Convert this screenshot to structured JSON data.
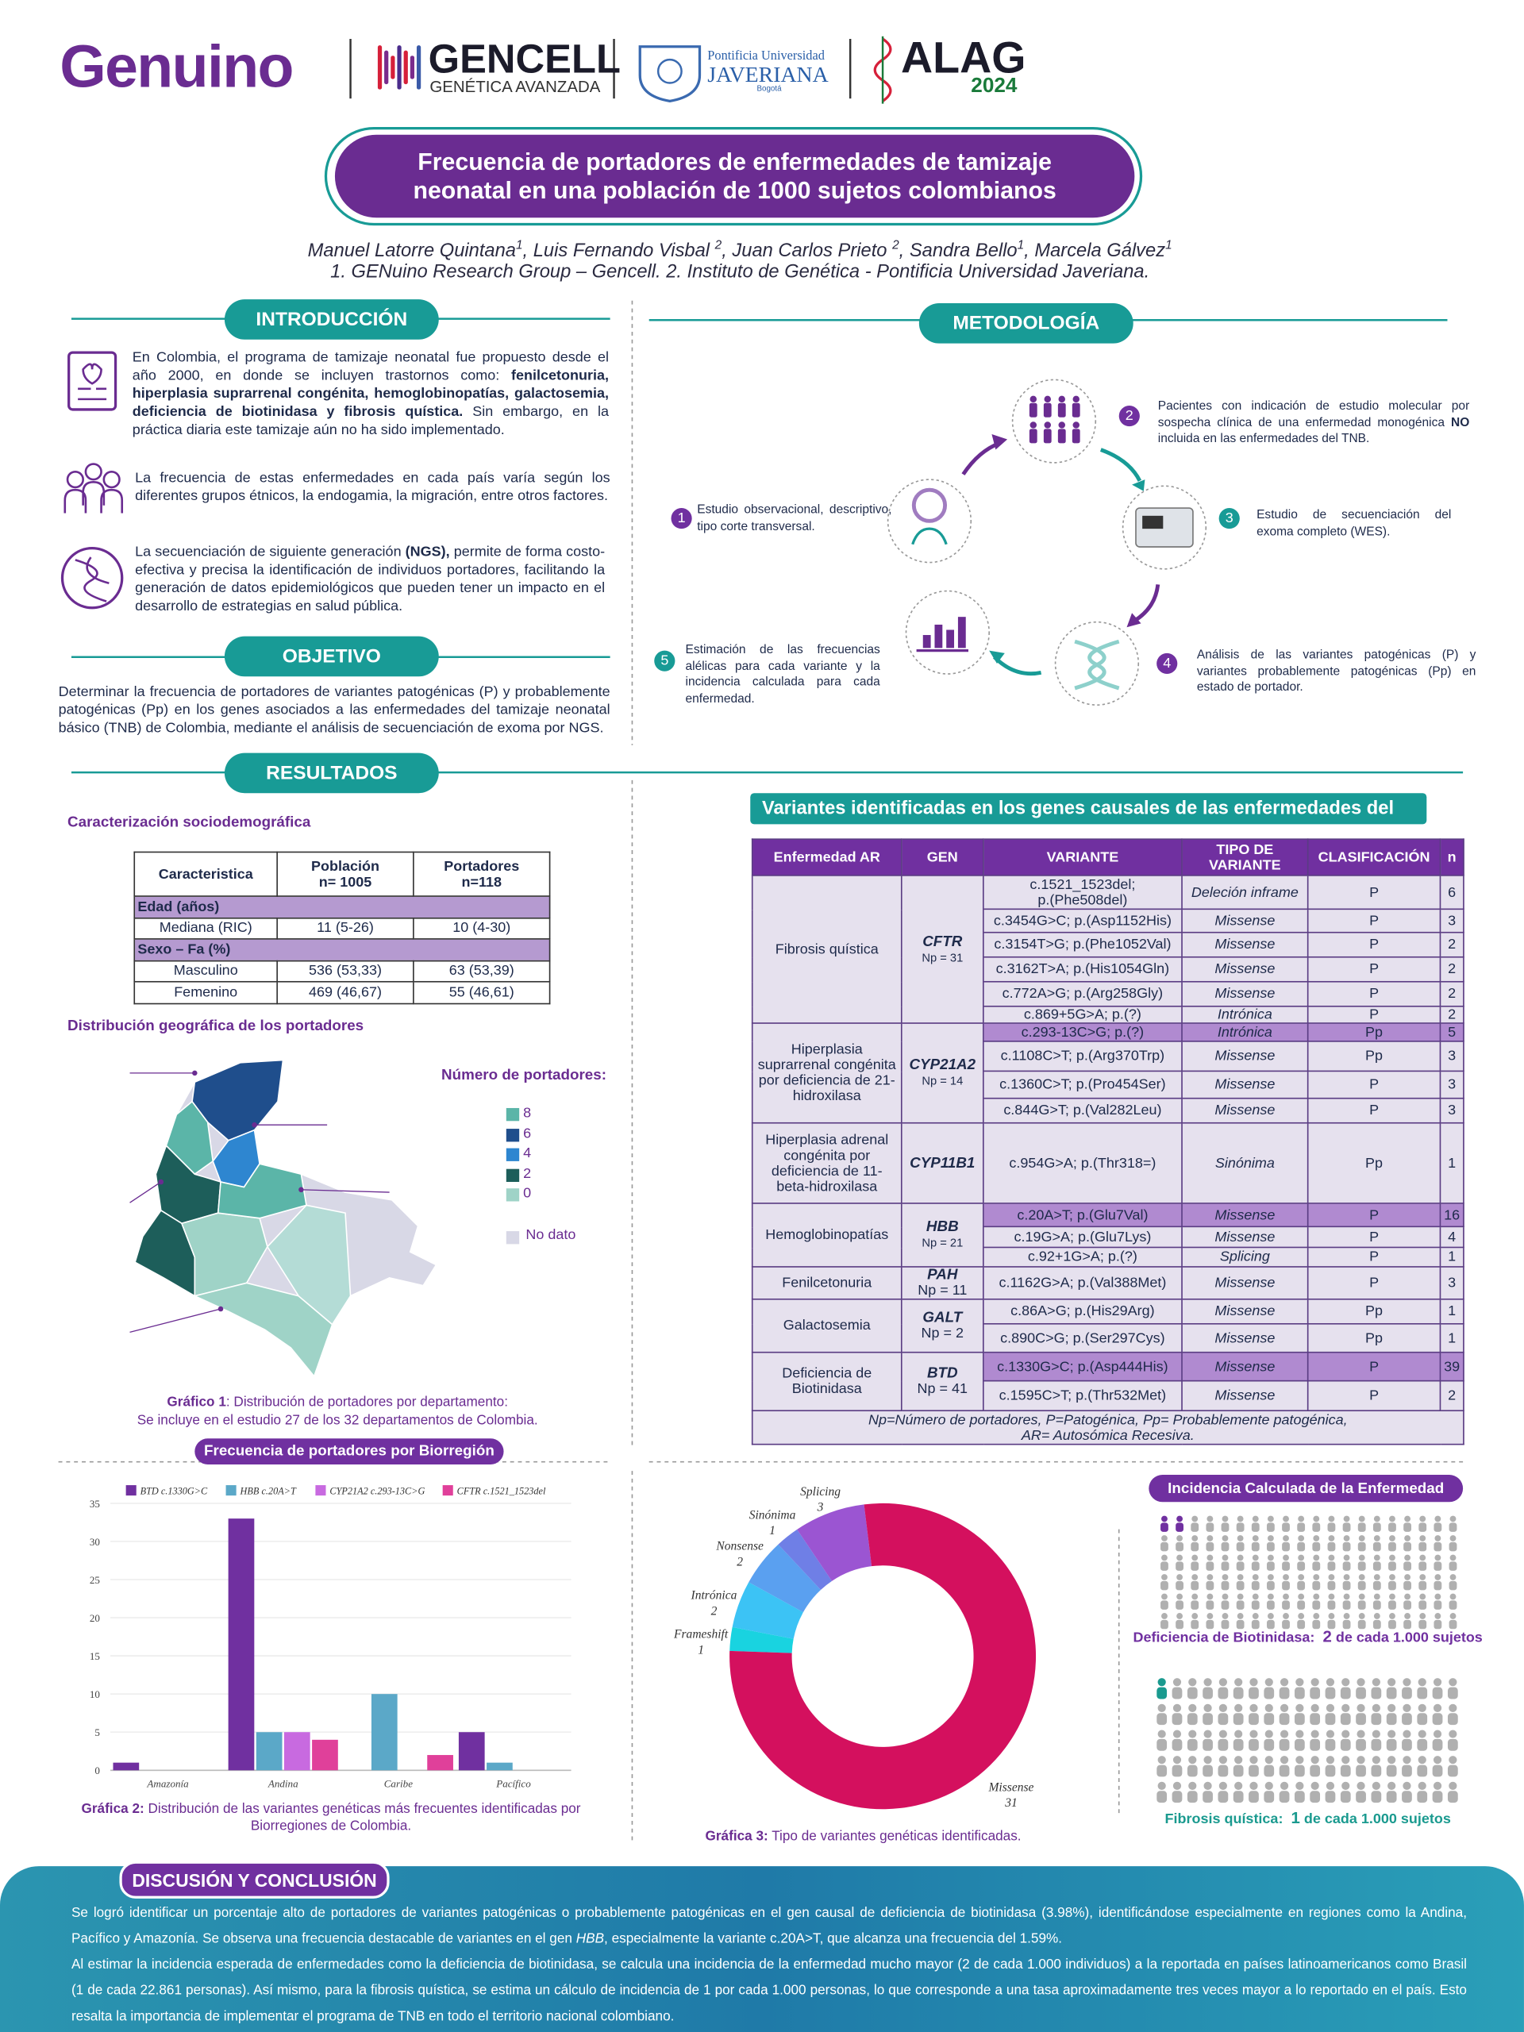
{
  "header": {
    "logos": {
      "genuino": "Genuino",
      "gencell": "GENCELL",
      "gencell_sub": "GENÉTICA AVANZADA",
      "javeriana_top": "Pontificia Universidad",
      "javeriana": "JAVERIANA",
      "javeriana_city": "Bogotá",
      "alag": "ALAG",
      "alag_year": "2024"
    },
    "title": [
      "Frecuencia de portadores de enfermedades de tamizaje",
      "neonatal en una población de 1000 sujetos colombianos"
    ],
    "authors": [
      {
        "text": "Manuel Latorre Quintana"
      },
      {
        "text": "1",
        "sup": true
      },
      {
        "text": ", Luis Fernando Visbal "
      },
      {
        "text": "2",
        "sup": true
      },
      {
        "text": ", Juan Carlos Prieto "
      },
      {
        "text": "2",
        "sup": true
      },
      {
        "text": ", Sandra Bello"
      },
      {
        "text": "1",
        "sup": true
      },
      {
        "text": ", Marcela Gálvez"
      },
      {
        "text": "1",
        "sup": true
      }
    ],
    "affiliations": "1. GENuino Research Group – Gencell. 2. Instituto de Genética - Pontificia Universidad Javeriana."
  },
  "introduction": {
    "title": "INTRODUCCIÓN",
    "paragraphs": [
      [
        {
          "text": "En Colombia, el programa de tamizaje neonatal fue propuesto desde el año 2000, en donde se incluyen trastornos como: "
        },
        {
          "text": "fenilcetonuria, hiperplasia suprarrenal congénita, hemoglobinopatías, galactosemia, deficiencia de biotinidasa y  fibrosis quística.",
          "bold": true
        },
        {
          "text": " Sin embargo, en la práctica diaria este tamizaje aún no ha sido implementado."
        }
      ],
      "La frecuencia de estas enfermedades en cada país varía según los diferentes grupos étnicos, la endogamia, la migración, entre otros factores.",
      [
        {
          "text": "La secuenciación de siguiente generación "
        },
        {
          "text": "(NGS),",
          "bold": true
        },
        {
          "text": " permite de forma costo-efectiva y precisa la identificación de individuos portadores, facilitando la generación de datos epidemiológicos que pueden tener un impacto en el desarrollo de estrategias en salud pública."
        }
      ]
    ]
  },
  "objective": {
    "title": "OBJETIVO",
    "text": "Determinar la frecuencia de portadores de variantes patogénicas (P) y probablemente patogénicas (Pp) en los genes asociados a las enfermedades del tamizaje neonatal básico (TNB) de Colombia, mediante el análisis de secuenciación de exoma  por NGS."
  },
  "methodology": {
    "title": "METODOLOGÍA",
    "steps": [
      {
        "number": 1,
        "color": "#7030a0",
        "text": "Estudio observacional, descriptivo, tipo corte transversal."
      },
      {
        "number": 2,
        "color": "#7030a0",
        "text": [
          {
            "text": "Pacientes con indicación de estudio molecular por sospecha clínica de una enfermedad monogénica "
          },
          {
            "text": "NO",
            "bold": true
          },
          {
            "text": " incluida en las enfermedades del TNB."
          }
        ]
      },
      {
        "number": 3,
        "color": "#189b96",
        "text": "Estudio de secuenciación del exoma completo (WES)."
      },
      {
        "number": 4,
        "color": "#7030a0",
        "text": "Análisis de las variantes patogénicas (P) y variantes probablemente patogénicas (Pp) en  estado de portador."
      },
      {
        "number": 5,
        "color": "#189b96",
        "text": "Estimación de  las frecuencias alélicas para cada variante y  la incidencia calculada para cada enfermedad."
      }
    ]
  },
  "results": {
    "title": "RESULTADOS",
    "sociodemographic": {
      "title": "Caracterización sociodemográfica",
      "header": [
        "Caracteristica",
        "Población\nn= 1005",
        "Portadores\nn=118"
      ],
      "rows": [
        {
          "section": "Edad (años)"
        },
        {
          "cells": [
            "Mediana (RIC)",
            "11 (5-26)",
            "10 (4-30)"
          ]
        },
        {
          "section": "Sexo – Fa (%)"
        },
        {
          "cells": [
            "Masculino",
            "536 (53,33)",
            "63 (53,39)"
          ]
        },
        {
          "cells": [
            "Femenino",
            "469 (46,67)",
            "55 (46,61)"
          ]
        }
      ]
    },
    "map": {
      "title": "Distribución geográfica de los portadores",
      "legend_title": "Número de portadores:",
      "legend": [
        {
          "label": "8",
          "color": "#5bb5a8"
        },
        {
          "label": "6",
          "color": "#1f4e8c"
        },
        {
          "label": "4",
          "color": "#2e86d0"
        },
        {
          "label": "2",
          "color": "#1d5e5a"
        },
        {
          "label": "0",
          "color": "#9fd3c7"
        }
      ],
      "no_data": {
        "label": "No dato",
        "color": "#d8d8e6"
      },
      "caption": [
        [
          {
            "text": "Gráfico 1",
            "bold": true
          },
          {
            "text": ":  Distribución de portadores por departamento:"
          }
        ],
        "Se incluye en el estudio 27 de los 32 departamentos de Colombia."
      ]
    },
    "variants_table": {
      "title": "Variantes identificadas en los genes causales de las enfermedades del TNB",
      "header": [
        "Enfermedad AR",
        "GEN",
        "VARIANTE",
        "TIPO DE VARIANTE",
        "CLASIFICACIÓN",
        "n"
      ],
      "groups": [
        {
          "disease": "Fibrosis quística",
          "gene": "CFTR",
          "np": "Np = 31",
          "variants": [
            {
              "variant": "c.1521_1523del;\np.(Phe508del)",
              "type": "Deleción inframe",
              "class": "P",
              "n": 6
            },
            {
              "variant": "c.3454G>C; p.(Asp1152His)",
              "type": "Missense",
              "class": "P",
              "n": 3
            },
            {
              "variant": "c.3154T>G; p.(Phe1052Val)",
              "type": "Missense",
              "class": "P",
              "n": 2
            },
            {
              "variant": "c.3162T>A; p.(His1054Gln)",
              "type": "Missense",
              "class": "P",
              "n": 2
            },
            {
              "variant": "c.772A>G; p.(Arg258Gly)",
              "type": "Missense",
              "class": "P",
              "n": 2
            },
            {
              "variant": "c.869+5G>A; p.(?)",
              "type": "Intrónica",
              "class": "P",
              "n": 2
            }
          ]
        },
        {
          "disease": "Hiperplasia suprarrenal congénita por deficiencia de 21-hidroxilasa",
          "gene": "CYP21A2",
          "np": "Np = 14",
          "variants": [
            {
              "variant": "c.293-13C>G; p.(?)",
              "type": "Intrónica",
              "class": "Pp",
              "n": 5,
              "highlight": true
            },
            {
              "variant": "c.1108C>T; p.(Arg370Trp)",
              "type": "Missense",
              "class": "Pp",
              "n": 3
            },
            {
              "variant": "c.1360C>T; p.(Pro454Ser)",
              "type": "Missense",
              "class": "P",
              "n": 3
            },
            {
              "variant": "c.844G>T; p.(Val282Leu)",
              "type": "Missense",
              "class": "P",
              "n": 3
            }
          ]
        },
        {
          "disease": "Hiperplasia adrenal congénita por deficiencia de 11-beta-hidroxilasa",
          "gene": "CYP11B1",
          "variants": [
            {
              "variant": "c.954G>A; p.(Thr318=)",
              "type": "Sinónima",
              "class": "Pp",
              "n": 1
            }
          ]
        },
        {
          "disease": "Hemoglobinopatías",
          "gene": "HBB",
          "np": "Np = 21",
          "variants": [
            {
              "variant": "c.20A>T; p.(Glu7Val)",
              "type": "Missense",
              "class": "P",
              "n": 16,
              "highlight": true
            },
            {
              "variant": "c.19G>A; p.(Glu7Lys)",
              "type": "Missense",
              "class": "P",
              "n": 4
            },
            {
              "variant": "c.92+1G>A; p.(?)",
              "type": "Splicing",
              "class": "P",
              "n": 1
            }
          ]
        },
        {
          "disease": "Fenilcetonuria",
          "gene": "PAH",
          "np": "Np = 11",
          "variants": [
            {
              "variant": "c.1162G>A; p.(Val388Met)",
              "type": "Missense",
              "class": "P",
              "n": 3
            }
          ]
        },
        {
          "disease": "Galactosemia",
          "gene": "GALT",
          "np": "Np = 2",
          "variants": [
            {
              "variant": "c.86A>G; p.(His29Arg)",
              "type": "Missense",
              "class": "Pp",
              "n": 1
            },
            {
              "variant": "c.890C>G; p.(Ser297Cys)",
              "type": "Missense",
              "class": "Pp",
              "n": 1
            }
          ]
        },
        {
          "disease": "Deficiencia de Biotinidasa",
          "gene": "BTD",
          "np": "Np = 41",
          "variants": [
            {
              "variant": "c.1330G>C; p.(Asp444His)",
              "type": "Missense",
              "class": "P",
              "n": 39,
              "highlight": true
            },
            {
              "variant": "c.1595C>T; p.(Thr532Met)",
              "type": "Missense",
              "class": "P",
              "n": 2
            }
          ]
        }
      ],
      "note": [
        "Np=Número de portadores, P=Patogénica, Pp= Probablemente patogénica,",
        "AR= Autosómica Recesiva."
      ]
    },
    "incidence": {
      "title": "Incidencia Calculada de la Enfermedad",
      "items": [
        {
          "label": "Deficiencia de Biotinidasa:",
          "value": 2,
          "suffix": "de cada 1.000 sujetos",
          "color": "#7030a0"
        },
        {
          "label": "Fibrosis quística:",
          "value": 1,
          "suffix": "de cada 1.000 sujetos",
          "color": "#1a9a8f"
        }
      ]
    }
  },
  "chart_data": [
    {
      "type": "bar",
      "title": "Frecuencia de portadores por Biorregión",
      "categories": [
        "Amazonía",
        "Andina",
        "Caribe",
        "Pacífico"
      ],
      "series": [
        {
          "name": "BTD c.1330G>C",
          "color": "#7030a0",
          "values": [
            1,
            33,
            0,
            5
          ]
        },
        {
          "name": "HBB c.20A>T",
          "color": "#5ba8c8",
          "values": [
            0,
            5,
            10,
            1
          ]
        },
        {
          "name": "CYP21A2 c.293-13C>G",
          "color": "#c86ae0",
          "values": [
            0,
            5,
            0,
            0
          ]
        },
        {
          "name": "CFTR c.1521_1523del",
          "color": "#e0409a",
          "values": [
            0,
            4,
            2,
            0
          ]
        }
      ],
      "ylim": [
        0,
        35
      ],
      "yticks": [
        0,
        5,
        10,
        15,
        20,
        25,
        30,
        35
      ],
      "grid": true,
      "caption": [
        [
          {
            "text": "Gráfica 2:",
            "bold": true
          },
          {
            "text": " Distribución de las variantes genéticas más frecuentes identificadas por"
          }
        ],
        "Biorregiones de Colombia."
      ]
    },
    {
      "type": "donut",
      "categories": [
        "Frameshift",
        "Intrónica",
        "Nonsense",
        "Sinónima",
        "Splicing",
        "Missense"
      ],
      "values": [
        1,
        2,
        2,
        1,
        3,
        31
      ],
      "colors": [
        "#19d3e0",
        "#3cc3f5",
        "#5aa0f0",
        "#6f7fe6",
        "#9b55d2",
        "#d4105e"
      ],
      "caption": [
        {
          "text": "Gráfica 3:",
          "bold": true
        },
        {
          "text": " Tipo de variantes genéticas identificadas."
        }
      ]
    }
  ],
  "discussion": {
    "title": "DISCUSIÓN Y CONCLUSIÓN",
    "paragraphs": [
      [
        {
          "text": "Se logró identificar un porcentaje alto de portadores de variantes patogénicas o probablemente patogénicas en el gen causal de deficiencia de biotinidasa (3.98%), identificándose especialmente en regiones como la Andina, Pacífico y Amazonía. Se observa una frecuencia destacable de variantes en el gen "
        },
        {
          "text": "HBB",
          "italic": true
        },
        {
          "text": ", especialmente la variante c.20A>T, que alcanza una frecuencia del 1.59%."
        }
      ],
      "Al estimar la incidencia esperada de enfermedades como la deficiencia de biotinidasa, se calcula una incidencia de la enfermedad mucho mayor (2 de cada 1.000 individuos) a la reportada en países latinoamericanos como Brasil (1 de cada 22.861 personas). Así mismo, para la fibrosis quística, se estima un cálculo de incidencia de 1 por cada 1.000 personas, lo que corresponde a una tasa aproximadamente tres veces mayor a lo reportado en el país. Esto resalta la importancia de implementar el programa de TNB en todo el territorio nacional colombiano."
    ]
  }
}
